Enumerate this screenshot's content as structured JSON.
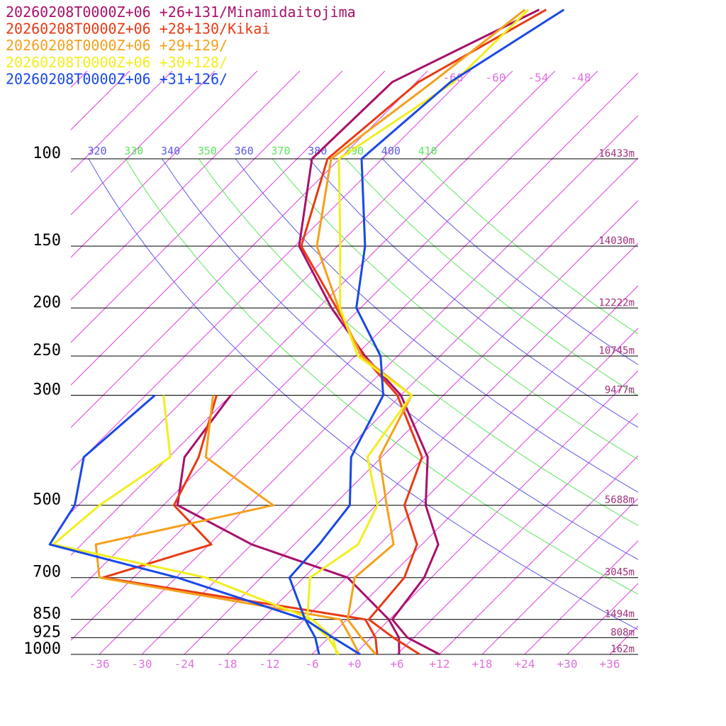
{
  "chart_data": {
    "type": "skewt",
    "log_y": true,
    "levels": [
      1000,
      925,
      850,
      700,
      600,
      500,
      400,
      300,
      250,
      200,
      150,
      100,
      70,
      50
    ],
    "ylim": [
      1000,
      100
    ],
    "yticks": [
      1000,
      925,
      850,
      700,
      500,
      300,
      250,
      200,
      150,
      100
    ],
    "xlim": [
      -40,
      40
    ],
    "xticks": [
      {
        "value": -36,
        "label": "-36"
      },
      {
        "value": -30,
        "label": "-30"
      },
      {
        "value": -24,
        "label": "-24"
      },
      {
        "value": -18,
        "label": "-18"
      },
      {
        "value": -12,
        "label": "-12"
      },
      {
        "value": -6,
        "label": "-6"
      },
      {
        "value": 0,
        "label": "+0"
      },
      {
        "value": 6,
        "label": "+6"
      },
      {
        "value": 12,
        "label": "+12"
      },
      {
        "value": 18,
        "label": "+18"
      },
      {
        "value": 24,
        "label": "+24"
      },
      {
        "value": 30,
        "label": "+30"
      },
      {
        "value": 36,
        "label": "+36"
      }
    ],
    "isotherm_labels": [
      -66,
      -60,
      -54,
      -48
    ],
    "theta_labels": [
      320,
      330,
      340,
      350,
      360,
      370,
      380,
      390,
      400,
      410
    ],
    "heights": [
      {
        "value": 100,
        "label": "16433m"
      },
      {
        "value": 150,
        "label": "14030m"
      },
      {
        "value": 200,
        "label": "12222m"
      },
      {
        "value": 250,
        "label": "10745m"
      },
      {
        "value": 300,
        "label": "9477m"
      },
      {
        "value": 500,
        "label": "5688m"
      },
      {
        "value": 700,
        "label": "3045m"
      },
      {
        "value": 850,
        "label": "1494m"
      },
      {
        "value": 925,
        "label": "808m"
      },
      {
        "value": 1000,
        "label": "162m"
      }
    ],
    "series": [
      {
        "name": "20260208T0000Z+06 +26+131/Minamidaitojima",
        "color": "#a8106a",
        "values": [
          12,
          5.1,
          0.4,
          -1,
          -3.7,
          -11,
          -17.5,
          -30,
          -40.6,
          -52.1,
          -65.4,
          -75.9,
          -75.4,
          -64.9
        ],
        "dewpoint": [
          6.3,
          3.9,
          -0.1,
          -11.8,
          -30,
          -46,
          -51.8,
          -54,
          null,
          null,
          null,
          null,
          null,
          null
        ]
      },
      {
        "name": "20260208T0000Z+06 +28+130/Kikai",
        "color": "#e83a14",
        "values": [
          9.2,
          3.1,
          -2.9,
          -3.8,
          -6.7,
          -14,
          -18.3,
          -30.5,
          -40.9,
          -51.4,
          -65.1,
          -73.7,
          -71.7,
          -63.9
        ],
        "dewpoint": [
          3.2,
          0.6,
          -3.4,
          -46.3,
          -35.7,
          -46.5,
          -49.8,
          -56,
          null,
          null,
          null,
          null,
          null,
          null
        ]
      },
      {
        "name": "20260208T0000Z+06 +29+129/",
        "color": "#f5a01c",
        "values": [
          3,
          -1.4,
          -5.9,
          -10.8,
          -10,
          -16.5,
          -24.3,
          -28.5,
          -41.1,
          -51.1,
          -62.9,
          -73.2,
          -69.7,
          -66.9
        ],
        "dewpoint": [
          0.7,
          -2.9,
          -6.9,
          -46.8,
          -52,
          -32.5,
          -48.8,
          -56.5,
          null,
          null,
          null,
          null,
          null,
          null
        ]
      },
      {
        "name": "20260208T0000Z+06 +30+128/",
        "color": "#f2ee1e",
        "values": [
          -2.2,
          -6.1,
          -11.6,
          -17.1,
          -15,
          -17.8,
          -26,
          -28.5,
          -41.6,
          -50.9,
          -59.6,
          -72.1,
          -66.7,
          -66.4
        ],
        "dewpoint": [
          -2.5,
          -5.4,
          -10.9,
          -31.8,
          -58,
          -57,
          -53.8,
          -63.5,
          null,
          null,
          null,
          null,
          null,
          null
        ]
      },
      {
        "name": "20260208T0000Z+06 +31+126/",
        "color": "#1848e6",
        "values": [
          0.8,
          -5.4,
          -11.9,
          -20,
          -20.5,
          -21.7,
          -28.3,
          -32.5,
          -38.4,
          -48.6,
          -56.1,
          -68.9,
          -67.2,
          -61.4
        ],
        "dewpoint": [
          -5,
          -7.9,
          -11.9,
          -35.8,
          -58.5,
          -60.5,
          -66,
          -64.7,
          null,
          null,
          null,
          null,
          null,
          null
        ]
      }
    ]
  }
}
